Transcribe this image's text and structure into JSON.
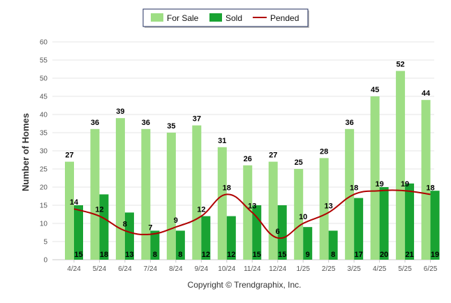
{
  "chart_data": {
    "type": "bar",
    "categories": [
      "4/24",
      "5/24",
      "6/24",
      "7/24",
      "8/24",
      "9/24",
      "10/24",
      "11/24",
      "12/24",
      "1/25",
      "2/25",
      "3/25",
      "4/25",
      "5/25",
      "6/25"
    ],
    "series": [
      {
        "name": "For Sale",
        "type": "bar",
        "color": "#9ede84",
        "values": [
          27,
          36,
          39,
          36,
          35,
          37,
          31,
          26,
          27,
          25,
          28,
          36,
          45,
          52,
          44
        ]
      },
      {
        "name": "Sold",
        "type": "bar",
        "color": "#19a332",
        "values": [
          15,
          18,
          13,
          8,
          8,
          12,
          12,
          15,
          15,
          9,
          8,
          17,
          20,
          21,
          19
        ]
      },
      {
        "name": "Pended",
        "type": "line",
        "color": "#b00000",
        "values": [
          14,
          12,
          8,
          7,
          9,
          12,
          18,
          13,
          6,
          10,
          13,
          18,
          19,
          19,
          18
        ]
      }
    ],
    "ylabel": "Number of Homes",
    "xlabel": "",
    "ylim": [
      0,
      60
    ],
    "yticks": [
      0,
      5,
      10,
      15,
      20,
      25,
      30,
      35,
      40,
      45,
      50,
      55,
      60
    ],
    "grid": true,
    "legend_position": "top-center"
  },
  "footer": {
    "copyright": "Copyright © Trendgraphix, Inc."
  }
}
